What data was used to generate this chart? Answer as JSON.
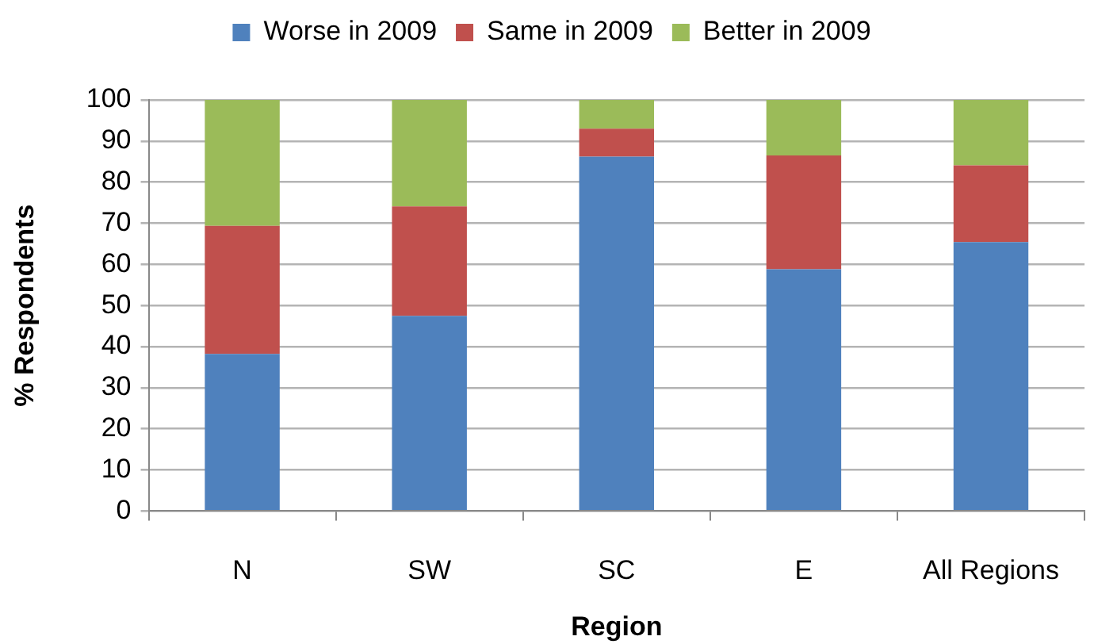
{
  "chart_data": {
    "type": "bar",
    "stacked": true,
    "xlabel": "Region",
    "ylabel": "% Respondents",
    "categories": [
      "N",
      "SW",
      "SC",
      "E",
      "All Regions"
    ],
    "series": [
      {
        "name": "Worse in 2009",
        "color": "#4f81bd",
        "values": [
          38.2,
          47.5,
          86.2,
          58.8,
          65.4
        ]
      },
      {
        "name": "Same in 2009",
        "color": "#c0504d",
        "values": [
          31.2,
          26.6,
          6.8,
          27.7,
          18.7
        ]
      },
      {
        "name": "Better in 2009",
        "color": "#9bbb59",
        "values": [
          30.6,
          25.9,
          7.0,
          13.5,
          15.9
        ]
      }
    ],
    "ylim": [
      0,
      100
    ],
    "yticks": [
      0,
      10,
      20,
      30,
      40,
      50,
      60,
      70,
      80,
      90,
      100
    ],
    "grid": "y",
    "legend": "top"
  }
}
